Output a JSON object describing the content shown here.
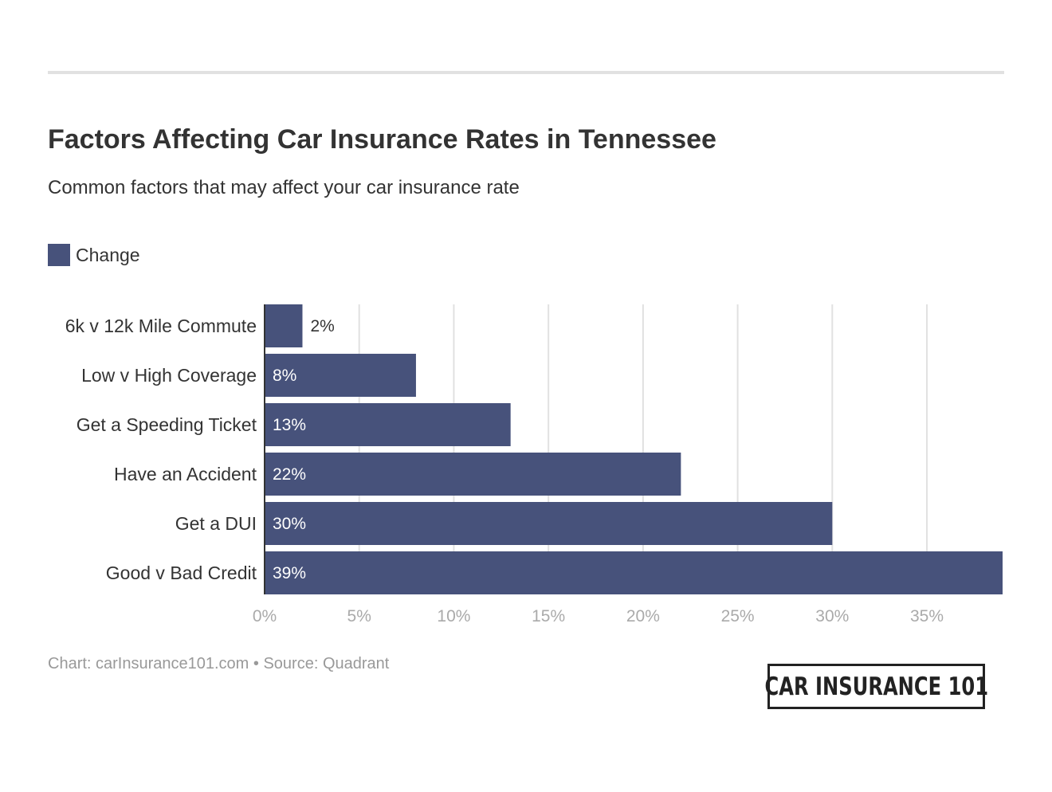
{
  "header": {
    "title": "Factors Affecting Car Insurance Rates in Tennessee",
    "subtitle": "Common factors that may affect your car insurance rate"
  },
  "colors": {
    "bar": "#47527b",
    "grid": "#e1e1e1",
    "axis": "#333333",
    "tick_label": "#aaaaaa",
    "text": "#333333"
  },
  "chart_data": {
    "type": "bar",
    "orientation": "horizontal",
    "categories": [
      "6k v 12k Mile Commute",
      "Low v High Coverage",
      "Get a Speeding Ticket",
      "Have an Accident",
      "Get a DUI",
      "Good v Bad Credit"
    ],
    "series": [
      {
        "name": "Change",
        "values": [
          2,
          8,
          13,
          22,
          30,
          39
        ],
        "labels": [
          "2%",
          "8%",
          "13%",
          "22%",
          "30%",
          "39%"
        ]
      }
    ],
    "xlim": [
      0,
      39
    ],
    "xticks": [
      0,
      5,
      10,
      15,
      20,
      25,
      30,
      35
    ],
    "xtick_labels": [
      "0%",
      "5%",
      "10%",
      "15%",
      "20%",
      "25%",
      "30%",
      "35%"
    ],
    "grid": true,
    "legend": "top-left"
  },
  "footer": {
    "credit": "Chart: carInsurance101.com • Source: Quadrant"
  },
  "logo": {
    "text": "CAR INSURANCE 101"
  }
}
